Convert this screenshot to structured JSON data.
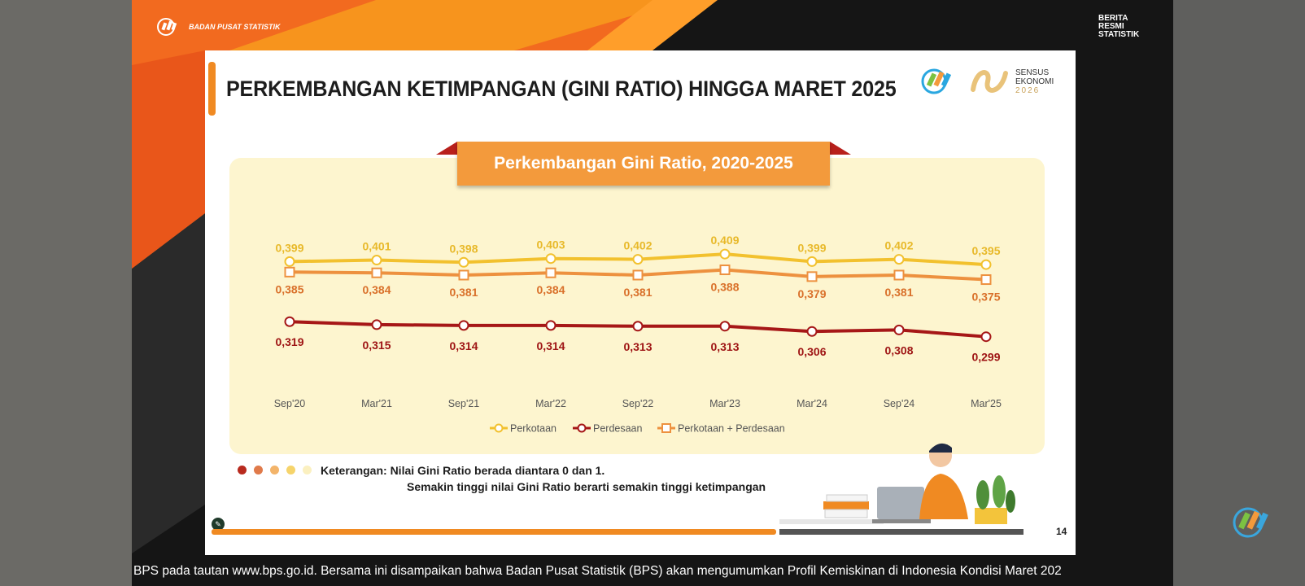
{
  "header": {
    "org_name": "BADAN PUSAT STATISTIK",
    "brs_label": "BERITA RESMI STATISTIK"
  },
  "slide": {
    "title": "PERKEMBANGAN KETIMPANGAN (GINI RATIO) HINGGA MARET 2025",
    "sensus_label": "SENSUS EKONOMI",
    "sensus_year": "2026",
    "note_line1": "Keterangan: Nilai Gini Ratio berada diantara 0 dan 1.",
    "note_line2": "Semakin tinggi nilai Gini Ratio berarti semakin tinggi ketimpangan",
    "page_number": "14"
  },
  "ticker_text": "BPS pada tautan www.bps.go.id. Bersama ini disampaikan bahwa Badan Pusat Statistik (BPS) akan mengumumkan Profil Kemiskinan di Indonesia Kondisi Maret 202",
  "colors": {
    "orange": "#f08a22",
    "perkotaan": "#f2c12e",
    "perdesaan": "#a61717",
    "gabungan": "#ed913f"
  },
  "chart_data": {
    "type": "line",
    "title": "Perkembangan Gini Ratio, 2020-2025",
    "categories": [
      "Sep'20",
      "Mar'21",
      "Sep'21",
      "Mar'22",
      "Sep'22",
      "Mar'23",
      "Mar'24",
      "Sep'24",
      "Mar'25"
    ],
    "series": [
      {
        "name": "Perkotaan",
        "values": [
          "0,399",
          "0,401",
          "0,398",
          "0,403",
          "0,402",
          "0,409",
          "0,399",
          "0,402",
          "0,395"
        ],
        "color": "#f2c12e",
        "marker": "circle"
      },
      {
        "name": "Perdesaan",
        "values": [
          "0,319",
          "0,315",
          "0,314",
          "0,314",
          "0,313",
          "0,313",
          "0,306",
          "0,308",
          "0,299"
        ],
        "color": "#a61717",
        "marker": "circle"
      },
      {
        "name": "Perkotaan + Perdesaan",
        "values": [
          "0,385",
          "0,384",
          "0,381",
          "0,384",
          "0,381",
          "0,388",
          "0,379",
          "0,381",
          "0,375"
        ],
        "color": "#ed913f",
        "marker": "square"
      }
    ],
    "legend": "bottom",
    "grid": false
  }
}
